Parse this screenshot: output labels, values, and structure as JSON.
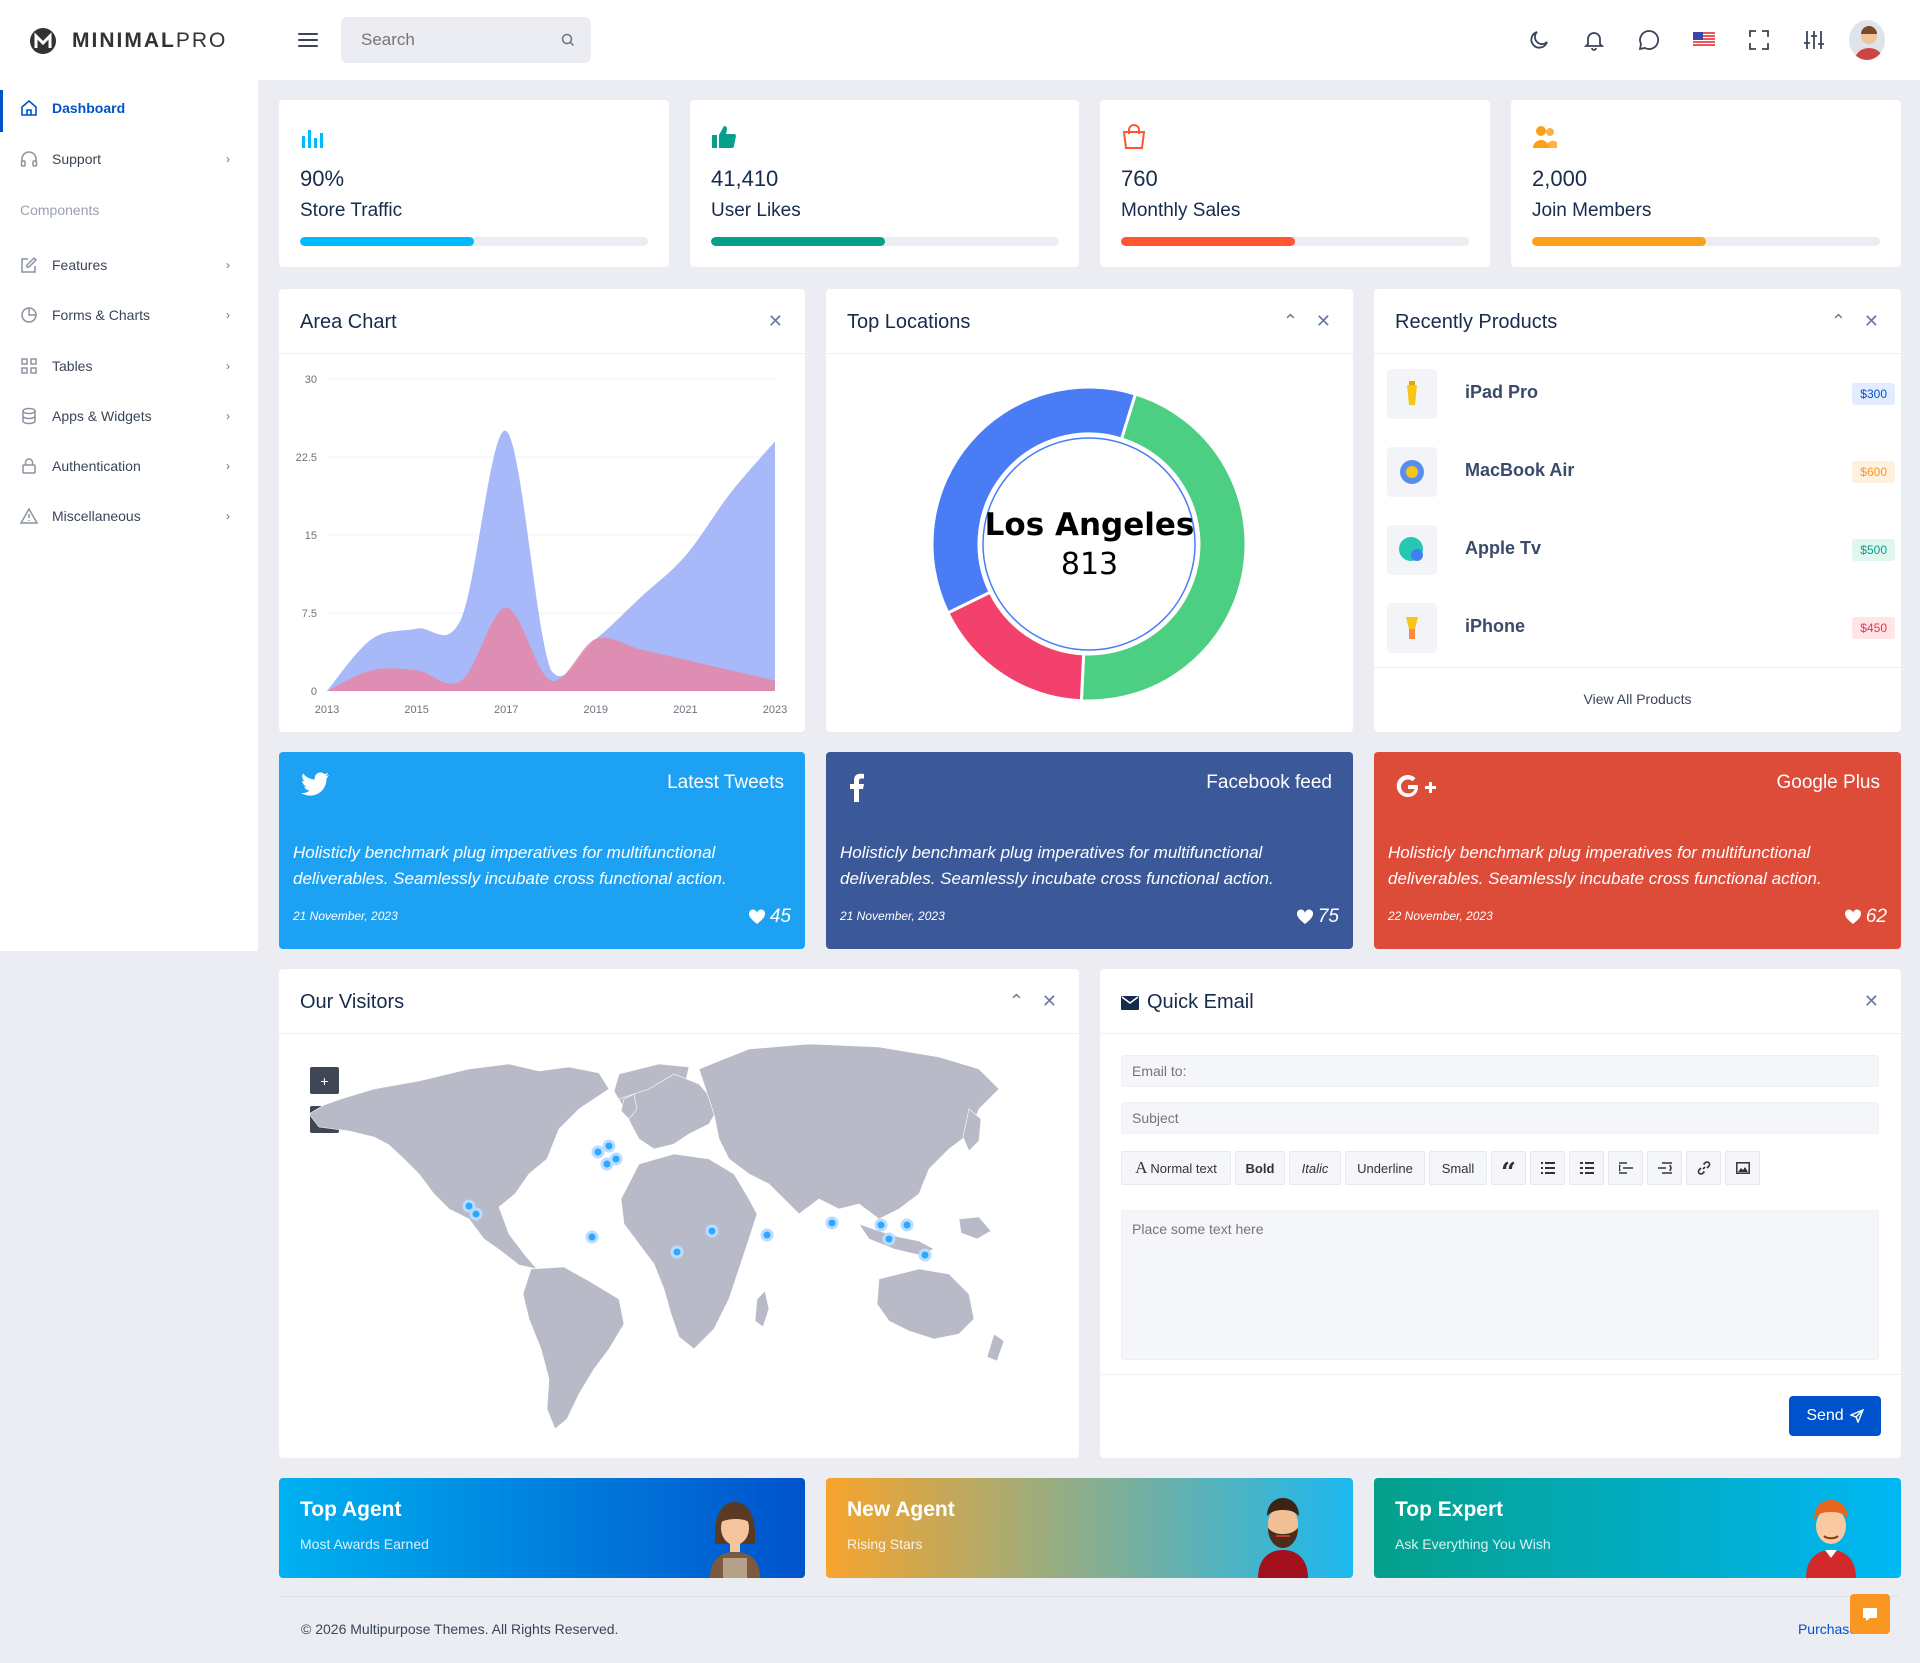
{
  "brand": {
    "bold": "MINIMAL",
    "light": "PRO"
  },
  "header": {
    "search_placeholder": "Search"
  },
  "sidebar": {
    "items": [
      {
        "label": "Dashboard",
        "icon": "home-icon",
        "active": true
      },
      {
        "label": "Support",
        "icon": "headphones-icon"
      },
      {
        "label": "Features",
        "icon": "edit-icon"
      },
      {
        "label": "Forms & Charts",
        "icon": "pie-icon"
      },
      {
        "label": "Tables",
        "icon": "grid-icon"
      },
      {
        "label": "Apps & Widgets",
        "icon": "database-icon"
      },
      {
        "label": "Authentication",
        "icon": "lock-icon"
      },
      {
        "label": "Miscellaneous",
        "icon": "alert-icon"
      }
    ],
    "section_label": "Components"
  },
  "stats": [
    {
      "value": "90%",
      "label": "Store Traffic",
      "progress": 0.5,
      "color": "#00baff"
    },
    {
      "value": "41,410",
      "label": "User Likes",
      "progress": 0.5,
      "color": "#04a08b"
    },
    {
      "value": "760",
      "label": "Monthly Sales",
      "progress": 0.5,
      "color": "#ff562f"
    },
    {
      "value": "2,000",
      "label": "Join Members",
      "progress": 0.5,
      "color": "#faa019"
    }
  ],
  "area_chart": {
    "title": "Area Chart",
    "chart_data": {
      "type": "area",
      "title": "",
      "x_ticks": [
        "2013",
        "2015",
        "2017",
        "2019",
        "2021",
        "2023"
      ],
      "y_ticks": [
        "0",
        "7.5",
        "15",
        "22.5",
        "30"
      ],
      "ylim": [
        0,
        30
      ],
      "series": [
        {
          "x": [
            2013,
            2014,
            2015,
            2016,
            2017,
            2018,
            2019,
            2020,
            2021,
            2022,
            2023
          ],
          "values": [
            0,
            5,
            6,
            7,
            25,
            2,
            5,
            9,
            13,
            19,
            24
          ],
          "color": "#98adf7"
        },
        {
          "x": [
            2013,
            2014,
            2015,
            2016,
            2017,
            2018,
            2019,
            2020,
            2021,
            2022,
            2023
          ],
          "values": [
            0,
            2,
            2,
            1,
            8,
            1,
            5,
            4,
            3,
            2,
            1
          ],
          "color": "#e68aab"
        }
      ]
    }
  },
  "top_locations": {
    "title": "Top Locations",
    "center_label": "Los Angeles",
    "center_value": "813",
    "chart_data": {
      "type": "pie",
      "slices": [
        {
          "value": 46,
          "color": "#4ccf82"
        },
        {
          "value": 17,
          "color": "#f1416c"
        },
        {
          "value": 37,
          "color": "#4a7cf5"
        }
      ]
    }
  },
  "recent_products": {
    "title": "Recently Products",
    "items": [
      {
        "name": "iPad Pro",
        "price": "$300",
        "bg": "#e3ecff",
        "fg": "#0052cc"
      },
      {
        "name": "MacBook Air",
        "price": "$600",
        "bg": "#fff1e0",
        "fg": "#f89823"
      },
      {
        "name": "Apple Tv",
        "price": "$500",
        "bg": "#dff7ee",
        "fg": "#04a08b"
      },
      {
        "name": "iPhone",
        "price": "$450",
        "bg": "#ffe5e5",
        "fg": "#ee3158"
      }
    ],
    "view_all": "View All Products"
  },
  "social": [
    {
      "heading": "Latest Tweets",
      "text": "Holisticly benchmark plug imperatives for multifunctional deliverables. Seamlessly incubate cross functional action.",
      "date": "21 November, 2023",
      "likes": "45",
      "bg": "#1da1f2"
    },
    {
      "heading": "Facebook feed",
      "text": "Holisticly benchmark plug imperatives for multifunctional deliverables. Seamlessly incubate cross functional action.",
      "date": "21 November, 2023",
      "likes": "75",
      "bg": "#3b5998"
    },
    {
      "heading": "Google Plus",
      "text": "Holisticly benchmark plug imperatives for multifunctional deliverables. Seamlessly incubate cross functional action.",
      "date": "22 November, 2023",
      "likes": "62",
      "bg": "#dd4b39"
    }
  ],
  "visitors": {
    "title": "Our Visitors",
    "zoom_in": "+",
    "zoom_out": "-"
  },
  "quick_email": {
    "title": "Quick Email",
    "to_placeholder": "Email to:",
    "subject_placeholder": "Subject",
    "toolbar": {
      "normal": "Normal text",
      "bold": "Bold",
      "italic": "Italic",
      "underline": "Underline",
      "small": "Small",
      "quote": "“"
    },
    "body_placeholder": "Place some text here",
    "send": "Send"
  },
  "agents": [
    {
      "title": "Top Agent",
      "subtitle": "Most Awards Earned"
    },
    {
      "title": "New Agent",
      "subtitle": "Rising Stars"
    },
    {
      "title": "Top Expert",
      "subtitle": "Ask Everything You Wish"
    }
  ],
  "footer": {
    "copyright": "© 2026 Multipurpose Themes. All Rights Reserved.",
    "purchase": "Purchase Now"
  }
}
